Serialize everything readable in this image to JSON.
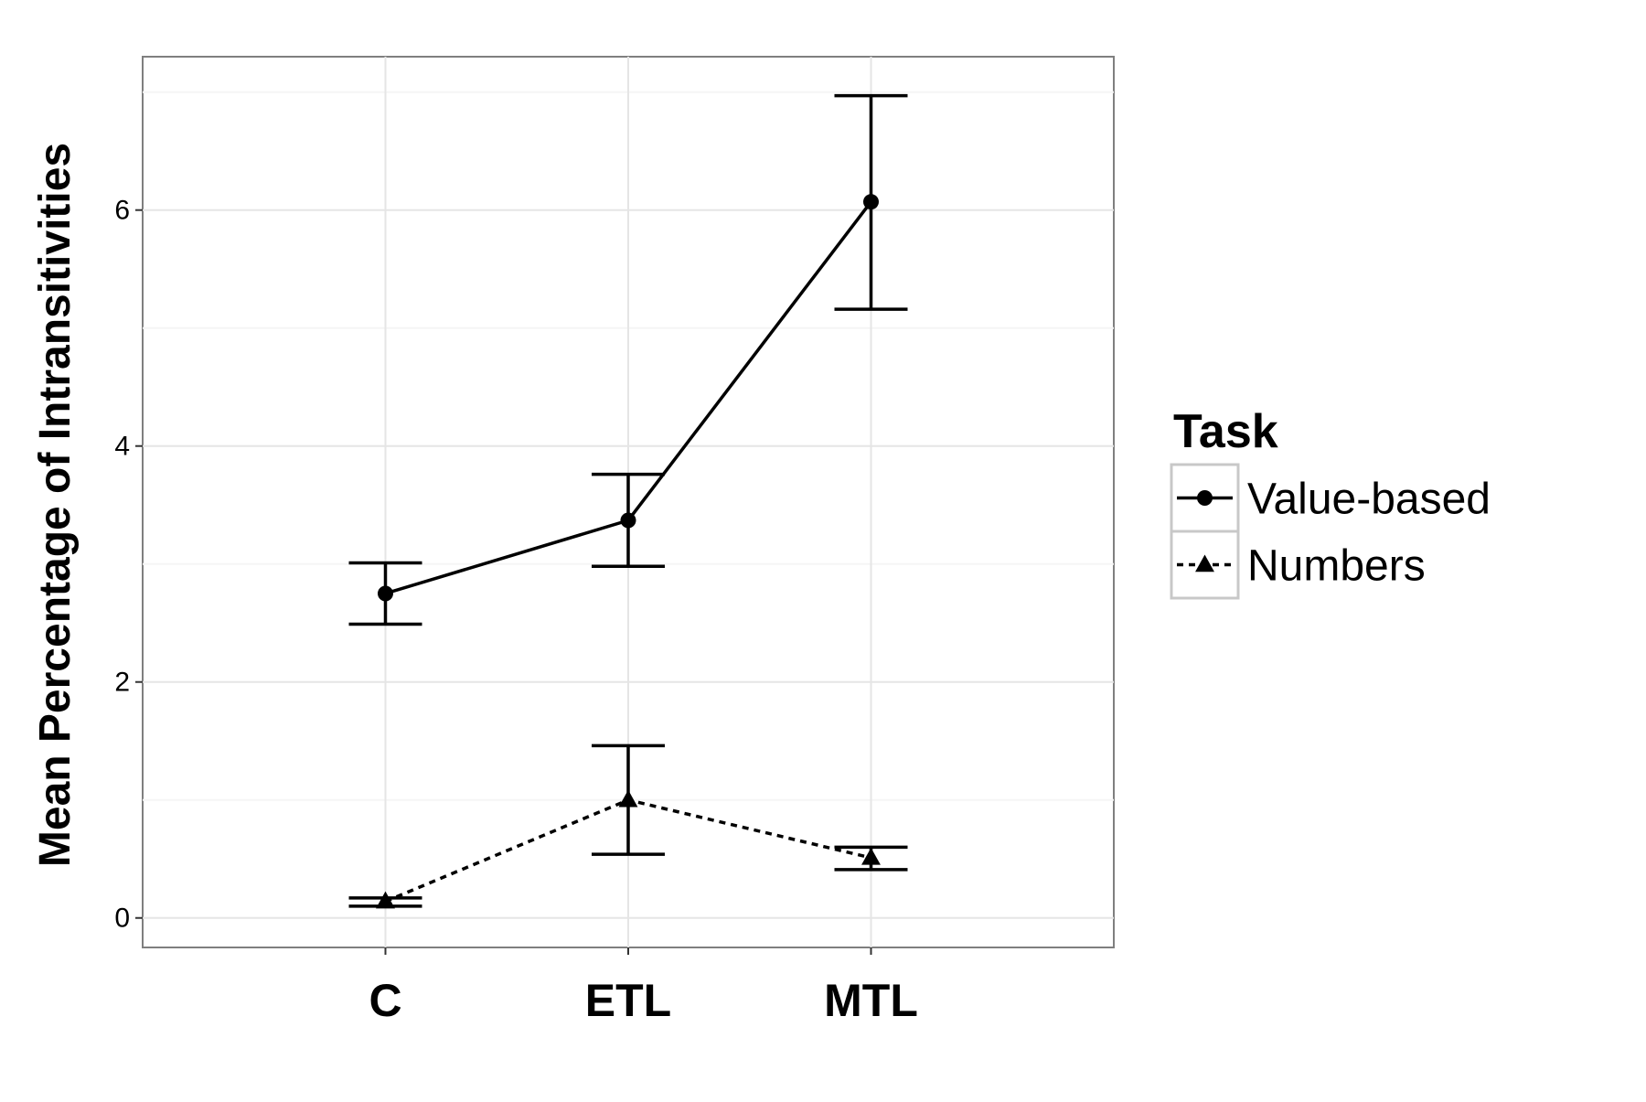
{
  "chart_data": {
    "type": "line",
    "title": "",
    "xlabel": "",
    "ylabel": "Mean Percentage of Intransitivities",
    "categories": [
      "C",
      "ETL",
      "MTL"
    ],
    "ylim": [
      -0.25,
      7.3
    ],
    "yticks": [
      0,
      2,
      4,
      6
    ],
    "grid": true,
    "legend": {
      "title": "Task",
      "position": "right"
    },
    "series": [
      {
        "name": "Value-based",
        "marker": "circle",
        "line_style": "solid",
        "values": [
          2.75,
          3.37,
          6.07
        ],
        "lower": [
          2.49,
          2.98,
          5.16
        ],
        "upper": [
          3.01,
          3.76,
          6.97
        ]
      },
      {
        "name": "Numbers",
        "marker": "triangle",
        "line_style": "dashed",
        "values": [
          0.14,
          1.0,
          0.51
        ],
        "lower": [
          0.1,
          0.54,
          0.41
        ],
        "upper": [
          0.17,
          1.46,
          0.6
        ]
      }
    ],
    "colors": {
      "panel_border": "#7f7f7f",
      "grid_major": "#e5e5e5",
      "grid_minor": "#f5f5f5",
      "ink": "#000000",
      "legend_key_border": "#c8c8c8"
    }
  }
}
